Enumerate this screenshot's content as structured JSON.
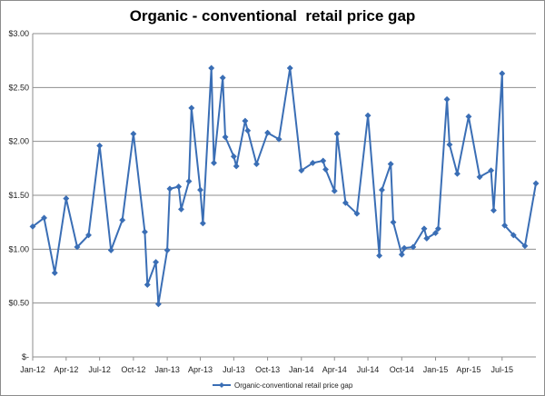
{
  "chart_data": {
    "type": "line",
    "title": "Organic - conventional  retail price gap",
    "xlabel": "",
    "ylabel": "",
    "ylim": [
      0,
      3
    ],
    "yticks": [
      0,
      0.5,
      1.0,
      1.5,
      2.0,
      2.5,
      3.0
    ],
    "ytick_labels": [
      "$-",
      "$0.50",
      "$1.00",
      "$1.50",
      "$2.00",
      "$2.50",
      "$3.00"
    ],
    "x_start": "2012-01",
    "x_end": "2015-10",
    "xtick_labels": [
      "Jan-12",
      "Apr-12",
      "Jul-12",
      "Oct-12",
      "Jan-13",
      "Apr-13",
      "Jul-13",
      "Oct-13",
      "Jan-14",
      "Apr-14",
      "Jul-14",
      "Oct-14",
      "Jan-15",
      "Apr-15",
      "Jul-15"
    ],
    "grid": true,
    "legend_position": "bottom",
    "series": [
      {
        "name": "Organic-conventional retail price gap",
        "color": "#3a6eb5",
        "marker": "diamond",
        "x": [
          "2012-01-01",
          "2012-02-01",
          "2012-03-01",
          "2012-04-01",
          "2012-05-01",
          "2012-06-01",
          "2012-07-01",
          "2012-08-01",
          "2012-09-01",
          "2012-10-01",
          "2012-11-01",
          "2012-11-08",
          "2012-12-01",
          "2012-12-08",
          "2013-01-01",
          "2013-01-08",
          "2013-02-01",
          "2013-02-08",
          "2013-03-01",
          "2013-03-08",
          "2013-04-01",
          "2013-04-08",
          "2013-05-01",
          "2013-05-08",
          "2013-06-01",
          "2013-06-08",
          "2013-07-01",
          "2013-07-08",
          "2013-08-01",
          "2013-08-08",
          "2013-09-01",
          "2013-10-01",
          "2013-11-01",
          "2013-12-01",
          "2014-01-01",
          "2014-02-01",
          "2014-03-01",
          "2014-03-08",
          "2014-04-01",
          "2014-04-08",
          "2014-05-01",
          "2014-06-01",
          "2014-07-01",
          "2014-08-01",
          "2014-08-08",
          "2014-09-01",
          "2014-09-08",
          "2014-10-01",
          "2014-10-08",
          "2014-11-01",
          "2014-12-01",
          "2014-12-08",
          "2015-01-01",
          "2015-01-08",
          "2015-02-01",
          "2015-02-08",
          "2015-03-01",
          "2015-04-01",
          "2015-05-01",
          "2015-06-01",
          "2015-06-08",
          "2015-07-01",
          "2015-07-08",
          "2015-08-01",
          "2015-09-01",
          "2015-10-01"
        ],
        "values": [
          1.21,
          1.29,
          0.78,
          1.47,
          1.02,
          1.13,
          1.96,
          0.99,
          1.27,
          2.07,
          1.16,
          0.67,
          0.88,
          0.49,
          0.99,
          1.56,
          1.58,
          1.37,
          1.63,
          2.31,
          1.55,
          1.24,
          2.68,
          1.8,
          2.59,
          2.04,
          1.86,
          1.77,
          2.19,
          2.1,
          1.79,
          2.08,
          2.02,
          2.68,
          1.73,
          1.8,
          1.82,
          1.74,
          1.54,
          2.07,
          1.43,
          1.33,
          2.24,
          0.94,
          1.55,
          1.79,
          1.25,
          0.95,
          1.01,
          1.02,
          1.19,
          1.1,
          1.15,
          1.19,
          2.39,
          1.97,
          1.7,
          2.23,
          1.67,
          1.73,
          1.36,
          2.63,
          1.22,
          1.13,
          1.03,
          1.61
        ]
      }
    ]
  }
}
